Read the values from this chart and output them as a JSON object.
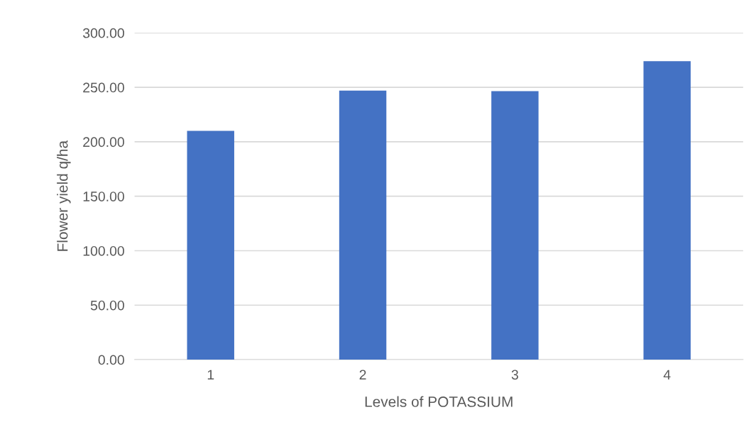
{
  "chart_data": {
    "type": "bar",
    "xlabel": "Levels of POTASSIUM",
    "ylabel": "Flower yield q/ha",
    "categories": [
      "1",
      "2",
      "3",
      "4"
    ],
    "values": [
      210,
      247,
      246.5,
      274
    ],
    "color": "#4472c4",
    "ylim": [
      0,
      300
    ],
    "yticks": [
      {
        "value": 0,
        "label": "0.00"
      },
      {
        "value": 50,
        "label": "50.00"
      },
      {
        "value": 100,
        "label": "100.00"
      },
      {
        "value": 150,
        "label": "150.00"
      },
      {
        "value": 200,
        "label": "200.00"
      },
      {
        "value": 250,
        "label": "250.00"
      },
      {
        "value": 300,
        "label": "300.00"
      }
    ],
    "grid": "y",
    "legend": false
  }
}
